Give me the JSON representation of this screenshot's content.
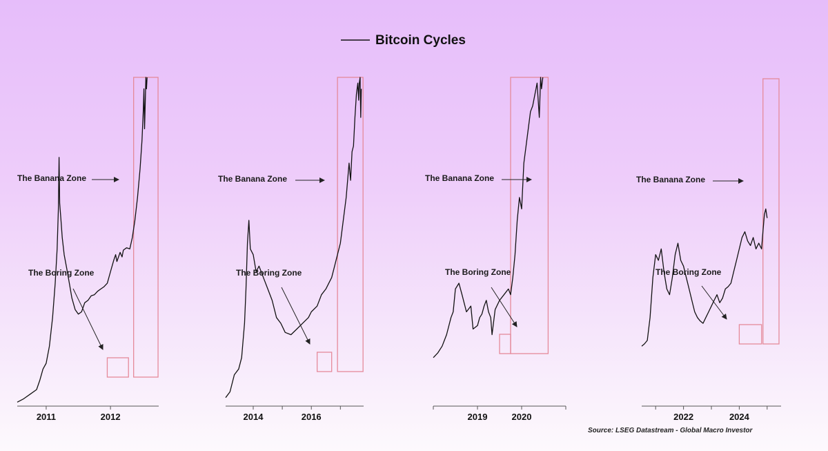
{
  "chart_data": {
    "type": "line",
    "title": "Bitcoin Cycles",
    "legend": {
      "series_name": "Bitcoin Cycles",
      "placement": "top-center"
    },
    "source": "Source: LSEG Datastream - Global Macro Investor",
    "annotation_labels": {
      "banana": "The Banana Zone",
      "boring": "The Boring Zone"
    },
    "colors": {
      "line": "#111111",
      "zone_box": "#e58a9a",
      "arrow": "#222222"
    },
    "grid": false,
    "y_scale": "log",
    "panels": [
      {
        "id": "cycle-1",
        "xlim": [
          2010.55,
          2012.75
        ],
        "ylim_log10": [
          -1.3,
          1.55
        ],
        "xticks": [
          {
            "value": 2011,
            "label": "2011"
          },
          {
            "value": 2012,
            "label": "2012"
          }
        ],
        "boring_zone": {
          "x": [
            2011.95,
            2012.28
          ]
        },
        "banana_zone": {
          "x": [
            2012.36,
            2012.74
          ]
        },
        "series": [
          [
            2010.55,
            -1.29
          ],
          [
            2010.65,
            -1.26
          ],
          [
            2010.75,
            -1.22
          ],
          [
            2010.85,
            -1.18
          ],
          [
            2010.9,
            -1.1
          ],
          [
            2010.95,
            -1.0
          ],
          [
            2011.0,
            -0.95
          ],
          [
            2011.05,
            -0.8
          ],
          [
            2011.1,
            -0.55
          ],
          [
            2011.14,
            -0.25
          ],
          [
            2011.17,
            0.05
          ],
          [
            2011.19,
            0.4
          ],
          [
            2011.2,
            0.85
          ],
          [
            2011.21,
            0.45
          ],
          [
            2011.23,
            0.3
          ],
          [
            2011.25,
            0.15
          ],
          [
            2011.28,
            0.0
          ],
          [
            2011.32,
            -0.12
          ],
          [
            2011.36,
            -0.25
          ],
          [
            2011.4,
            -0.38
          ],
          [
            2011.45,
            -0.48
          ],
          [
            2011.5,
            -0.52
          ],
          [
            2011.55,
            -0.5
          ],
          [
            2011.6,
            -0.42
          ],
          [
            2011.65,
            -0.4
          ],
          [
            2011.7,
            -0.36
          ],
          [
            2011.75,
            -0.35
          ],
          [
            2011.8,
            -0.32
          ],
          [
            2011.85,
            -0.3
          ],
          [
            2011.9,
            -0.28
          ],
          [
            2011.95,
            -0.25
          ],
          [
            2012.0,
            -0.15
          ],
          [
            2012.05,
            -0.05
          ],
          [
            2012.08,
            0.0
          ],
          [
            2012.1,
            -0.06
          ],
          [
            2012.15,
            0.02
          ],
          [
            2012.18,
            -0.02
          ],
          [
            2012.2,
            0.04
          ],
          [
            2012.25,
            0.06
          ],
          [
            2012.3,
            0.05
          ],
          [
            2012.34,
            0.15
          ],
          [
            2012.38,
            0.3
          ],
          [
            2012.42,
            0.5
          ],
          [
            2012.46,
            0.75
          ],
          [
            2012.49,
            1.0
          ],
          [
            2012.51,
            1.25
          ],
          [
            2012.52,
            1.45
          ],
          [
            2012.53,
            1.1
          ],
          [
            2012.54,
            1.3
          ],
          [
            2012.55,
            1.55
          ],
          [
            2012.56,
            1.45
          ],
          [
            2012.57,
            1.55
          ]
        ]
      },
      {
        "id": "cycle-2",
        "xlim": [
          2013.05,
          2017.8
        ],
        "ylim_log10": [
          -1.3,
          1.55
        ],
        "xticks": [
          {
            "value": 2014,
            "label": "2014"
          },
          {
            "value": 2016,
            "label": "2016"
          }
        ],
        "boring_zone": {
          "x": [
            2016.2,
            2016.7
          ]
        },
        "banana_zone": {
          "x": [
            2016.9,
            2017.78
          ]
        },
        "series": [
          [
            2013.05,
            -1.25
          ],
          [
            2013.2,
            -1.2
          ],
          [
            2013.35,
            -1.05
          ],
          [
            2013.5,
            -1.0
          ],
          [
            2013.6,
            -0.9
          ],
          [
            2013.7,
            -0.6
          ],
          [
            2013.75,
            -0.3
          ],
          [
            2013.8,
            0.1
          ],
          [
            2013.85,
            0.3
          ],
          [
            2013.9,
            0.05
          ],
          [
            2014.0,
            0.0
          ],
          [
            2014.1,
            -0.15
          ],
          [
            2014.2,
            -0.1
          ],
          [
            2014.35,
            -0.2
          ],
          [
            2014.5,
            -0.3
          ],
          [
            2014.65,
            -0.4
          ],
          [
            2014.8,
            -0.55
          ],
          [
            2014.95,
            -0.6
          ],
          [
            2015.1,
            -0.68
          ],
          [
            2015.3,
            -0.7
          ],
          [
            2015.5,
            -0.65
          ],
          [
            2015.7,
            -0.6
          ],
          [
            2015.9,
            -0.55
          ],
          [
            2016.0,
            -0.5
          ],
          [
            2016.2,
            -0.45
          ],
          [
            2016.35,
            -0.35
          ],
          [
            2016.5,
            -0.3
          ],
          [
            2016.6,
            -0.25
          ],
          [
            2016.7,
            -0.2
          ],
          [
            2016.8,
            -0.1
          ],
          [
            2016.9,
            0.0
          ],
          [
            2017.0,
            0.1
          ],
          [
            2017.1,
            0.3
          ],
          [
            2017.2,
            0.5
          ],
          [
            2017.3,
            0.8
          ],
          [
            2017.35,
            0.65
          ],
          [
            2017.4,
            0.9
          ],
          [
            2017.45,
            0.95
          ],
          [
            2017.5,
            1.2
          ],
          [
            2017.55,
            1.4
          ],
          [
            2017.6,
            1.5
          ],
          [
            2017.63,
            1.35
          ],
          [
            2017.65,
            1.5
          ],
          [
            2017.68,
            1.55
          ],
          [
            2017.7,
            1.2
          ],
          [
            2017.72,
            1.45
          ]
        ]
      },
      {
        "id": "cycle-3",
        "xlim": [
          2018.0,
          2021.0
        ],
        "ylim_log10": [
          -1.3,
          1.55
        ],
        "xticks": [
          {
            "value": 2019,
            "label": "2019"
          },
          {
            "value": 2020,
            "label": "2020"
          }
        ],
        "boring_zone": {
          "x": [
            2019.5,
            2019.75
          ]
        },
        "banana_zone": {
          "x": [
            2019.75,
            2020.6
          ]
        },
        "series": [
          [
            2018.0,
            -0.9
          ],
          [
            2018.05,
            -0.88
          ],
          [
            2018.1,
            -0.86
          ],
          [
            2018.2,
            -0.8
          ],
          [
            2018.25,
            -0.75
          ],
          [
            2018.3,
            -0.7
          ],
          [
            2018.4,
            -0.55
          ],
          [
            2018.45,
            -0.5
          ],
          [
            2018.5,
            -0.3
          ],
          [
            2018.58,
            -0.25
          ],
          [
            2018.65,
            -0.35
          ],
          [
            2018.75,
            -0.5
          ],
          [
            2018.85,
            -0.45
          ],
          [
            2018.9,
            -0.65
          ],
          [
            2019.0,
            -0.62
          ],
          [
            2019.05,
            -0.55
          ],
          [
            2019.1,
            -0.52
          ],
          [
            2019.15,
            -0.45
          ],
          [
            2019.2,
            -0.4
          ],
          [
            2019.25,
            -0.5
          ],
          [
            2019.3,
            -0.55
          ],
          [
            2019.33,
            -0.7
          ],
          [
            2019.4,
            -0.48
          ],
          [
            2019.5,
            -0.4
          ],
          [
            2019.6,
            -0.35
          ],
          [
            2019.7,
            -0.3
          ],
          [
            2019.75,
            -0.35
          ],
          [
            2019.8,
            -0.2
          ],
          [
            2019.85,
            0.0
          ],
          [
            2019.9,
            0.3
          ],
          [
            2019.95,
            0.5
          ],
          [
            2020.0,
            0.4
          ],
          [
            2020.05,
            0.8
          ],
          [
            2020.1,
            0.95
          ],
          [
            2020.15,
            1.1
          ],
          [
            2020.2,
            1.25
          ],
          [
            2020.25,
            1.3
          ],
          [
            2020.3,
            1.4
          ],
          [
            2020.35,
            1.5
          ],
          [
            2020.4,
            1.2
          ],
          [
            2020.43,
            1.55
          ],
          [
            2020.45,
            1.45
          ],
          [
            2020.48,
            1.55
          ]
        ]
      },
      {
        "id": "cycle-4",
        "xlim": [
          2020.5,
          2025.5
        ],
        "ylim_log10": [
          -1.3,
          1.55
        ],
        "xticks": [
          {
            "value": 2022,
            "label": "2022"
          },
          {
            "value": 2024,
            "label": "2024"
          }
        ],
        "boring_zone": {
          "x": [
            2024.0,
            2024.8
          ]
        },
        "banana_zone": {
          "x": [
            2024.85,
            2026.0
          ]
        },
        "series": [
          [
            2020.5,
            -0.8
          ],
          [
            2020.6,
            -0.78
          ],
          [
            2020.7,
            -0.75
          ],
          [
            2020.8,
            -0.55
          ],
          [
            2020.9,
            -0.2
          ],
          [
            2021.0,
            0.0
          ],
          [
            2021.1,
            -0.05
          ],
          [
            2021.2,
            0.05
          ],
          [
            2021.3,
            -0.15
          ],
          [
            2021.4,
            -0.3
          ],
          [
            2021.5,
            -0.35
          ],
          [
            2021.6,
            -0.2
          ],
          [
            2021.7,
            0.0
          ],
          [
            2021.8,
            0.1
          ],
          [
            2021.9,
            -0.05
          ],
          [
            2022.0,
            -0.1
          ],
          [
            2022.1,
            -0.2
          ],
          [
            2022.2,
            -0.3
          ],
          [
            2022.3,
            -0.4
          ],
          [
            2022.4,
            -0.5
          ],
          [
            2022.5,
            -0.55
          ],
          [
            2022.6,
            -0.58
          ],
          [
            2022.7,
            -0.6
          ],
          [
            2022.8,
            -0.55
          ],
          [
            2022.9,
            -0.5
          ],
          [
            2023.0,
            -0.45
          ],
          [
            2023.1,
            -0.4
          ],
          [
            2023.2,
            -0.35
          ],
          [
            2023.3,
            -0.42
          ],
          [
            2023.4,
            -0.38
          ],
          [
            2023.5,
            -0.3
          ],
          [
            2023.6,
            -0.28
          ],
          [
            2023.7,
            -0.25
          ],
          [
            2023.8,
            -0.15
          ],
          [
            2023.9,
            -0.05
          ],
          [
            2024.0,
            0.05
          ],
          [
            2024.1,
            0.15
          ],
          [
            2024.2,
            0.2
          ],
          [
            2024.3,
            0.12
          ],
          [
            2024.4,
            0.08
          ],
          [
            2024.5,
            0.15
          ],
          [
            2024.6,
            0.05
          ],
          [
            2024.7,
            0.1
          ],
          [
            2024.8,
            0.05
          ],
          [
            2024.85,
            0.2
          ],
          [
            2024.9,
            0.35
          ],
          [
            2024.95,
            0.4
          ],
          [
            2025.0,
            0.32
          ]
        ]
      }
    ]
  }
}
